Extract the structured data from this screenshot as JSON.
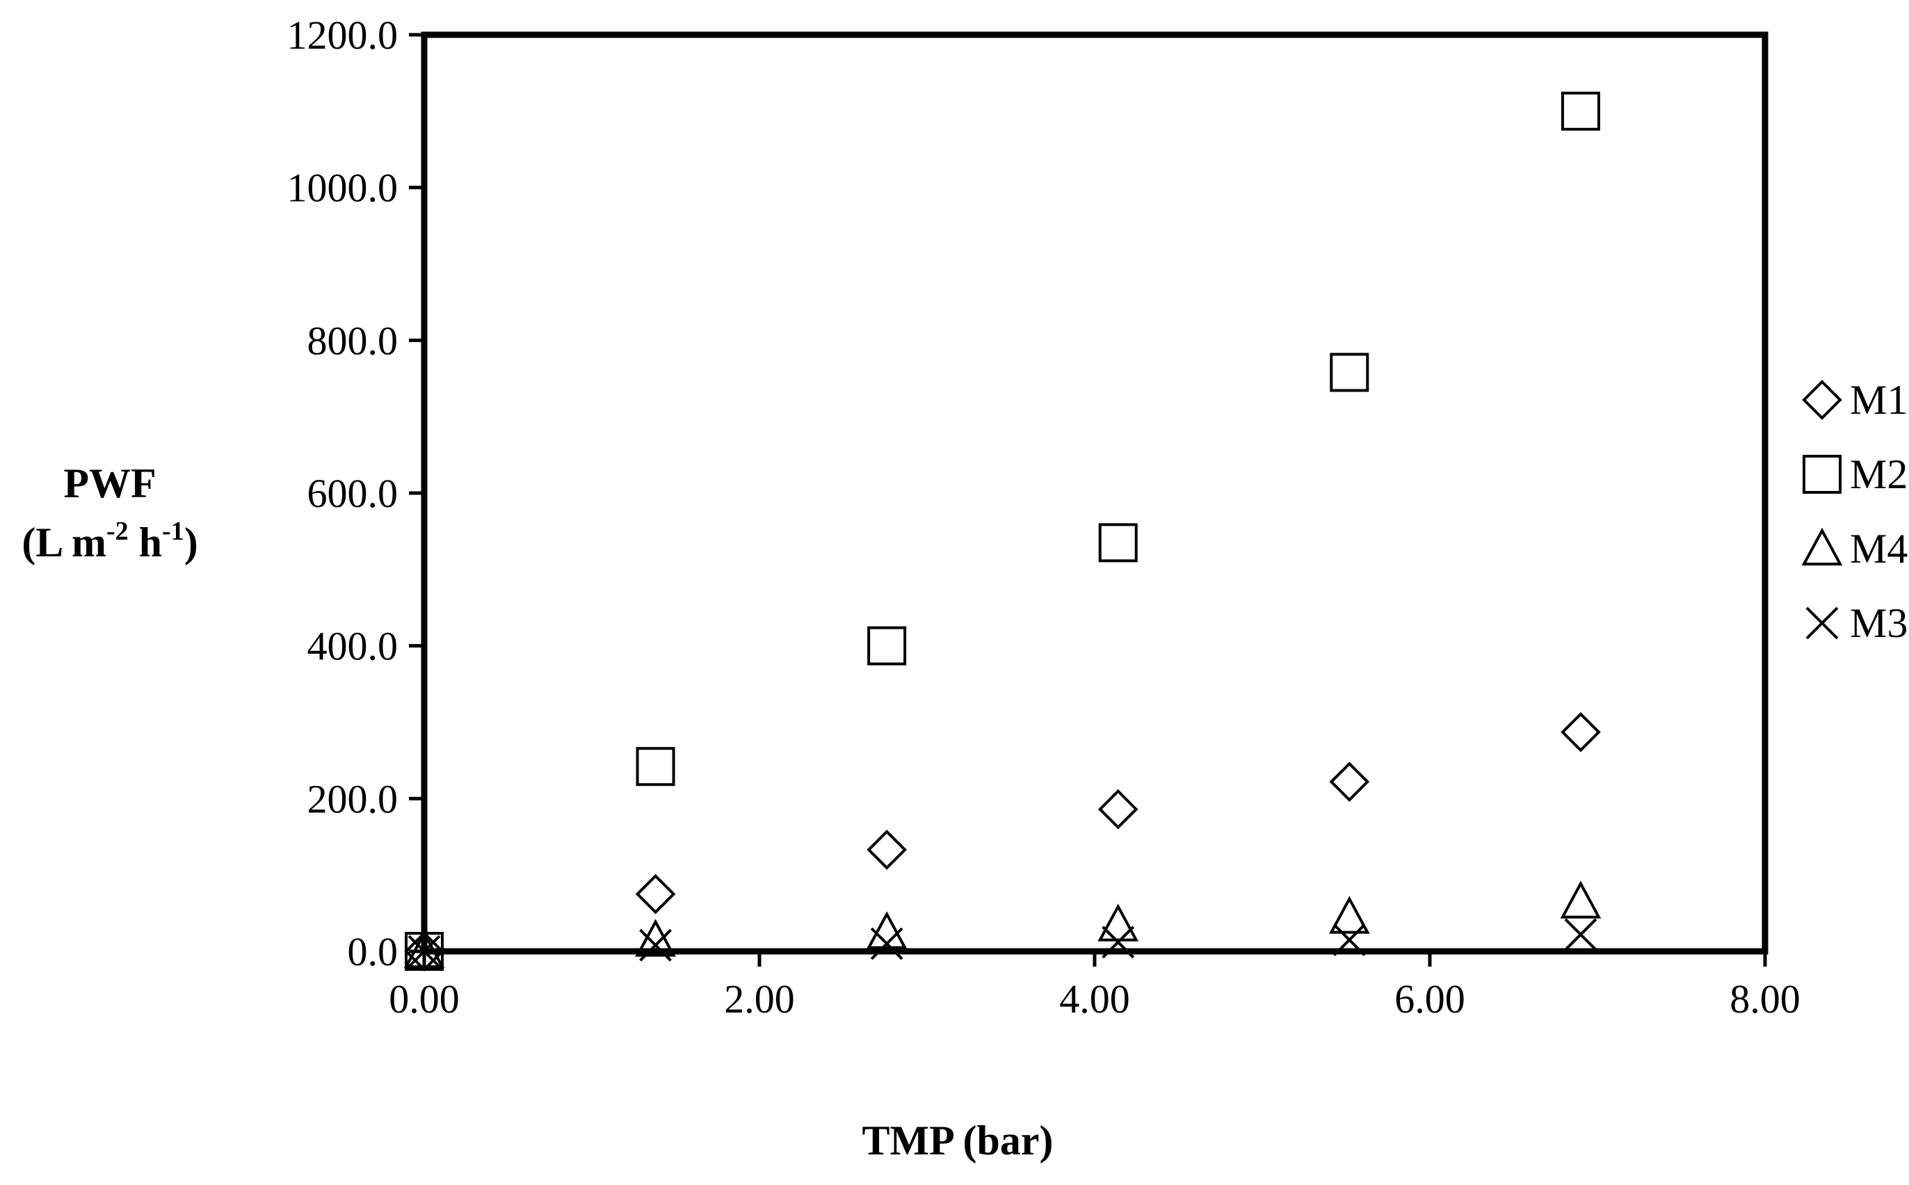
{
  "chart_data": {
    "type": "scatter",
    "xlabel": "TMP (bar)",
    "ylabel_line1": "PWF",
    "ylabel_line2_base": "(L m",
    "ylabel_sup1": "-2",
    "ylabel_mid": " h",
    "ylabel_sup2": "-1",
    "ylabel_end": ")",
    "xlim": [
      0,
      8
    ],
    "ylim": [
      0,
      1200
    ],
    "x_ticks": [
      0,
      2,
      4,
      6,
      8
    ],
    "x_tick_labels": [
      "0.00",
      "2.00",
      "4.00",
      "6.00",
      "8.00"
    ],
    "y_ticks": [
      0,
      200,
      400,
      600,
      800,
      1000,
      1200
    ],
    "y_tick_labels": [
      "0.0",
      "200.0",
      "400.0",
      "600.0",
      "800.0",
      "1000.0",
      "1200.0"
    ],
    "grid": false,
    "legend_position": "right",
    "series": [
      {
        "name": "M1",
        "marker": "diamond",
        "x": [
          0,
          1.38,
          2.76,
          4.14,
          5.52,
          6.9
        ],
        "y": [
          0,
          75,
          133,
          186,
          222,
          287
        ]
      },
      {
        "name": "M2",
        "marker": "square",
        "x": [
          0,
          1.38,
          2.76,
          4.14,
          5.52,
          6.9
        ],
        "y": [
          0,
          242,
          400,
          535,
          758,
          1100
        ]
      },
      {
        "name": "M4",
        "marker": "triangle",
        "x": [
          0,
          1.38,
          2.76,
          4.14,
          5.52,
          6.9
        ],
        "y": [
          0,
          15,
          25,
          35,
          45,
          65
        ]
      },
      {
        "name": "M3",
        "marker": "x",
        "x": [
          0,
          1.38,
          2.76,
          4.14,
          5.52,
          6.9
        ],
        "y": [
          0,
          8,
          10,
          12,
          15,
          22
        ]
      }
    ]
  }
}
